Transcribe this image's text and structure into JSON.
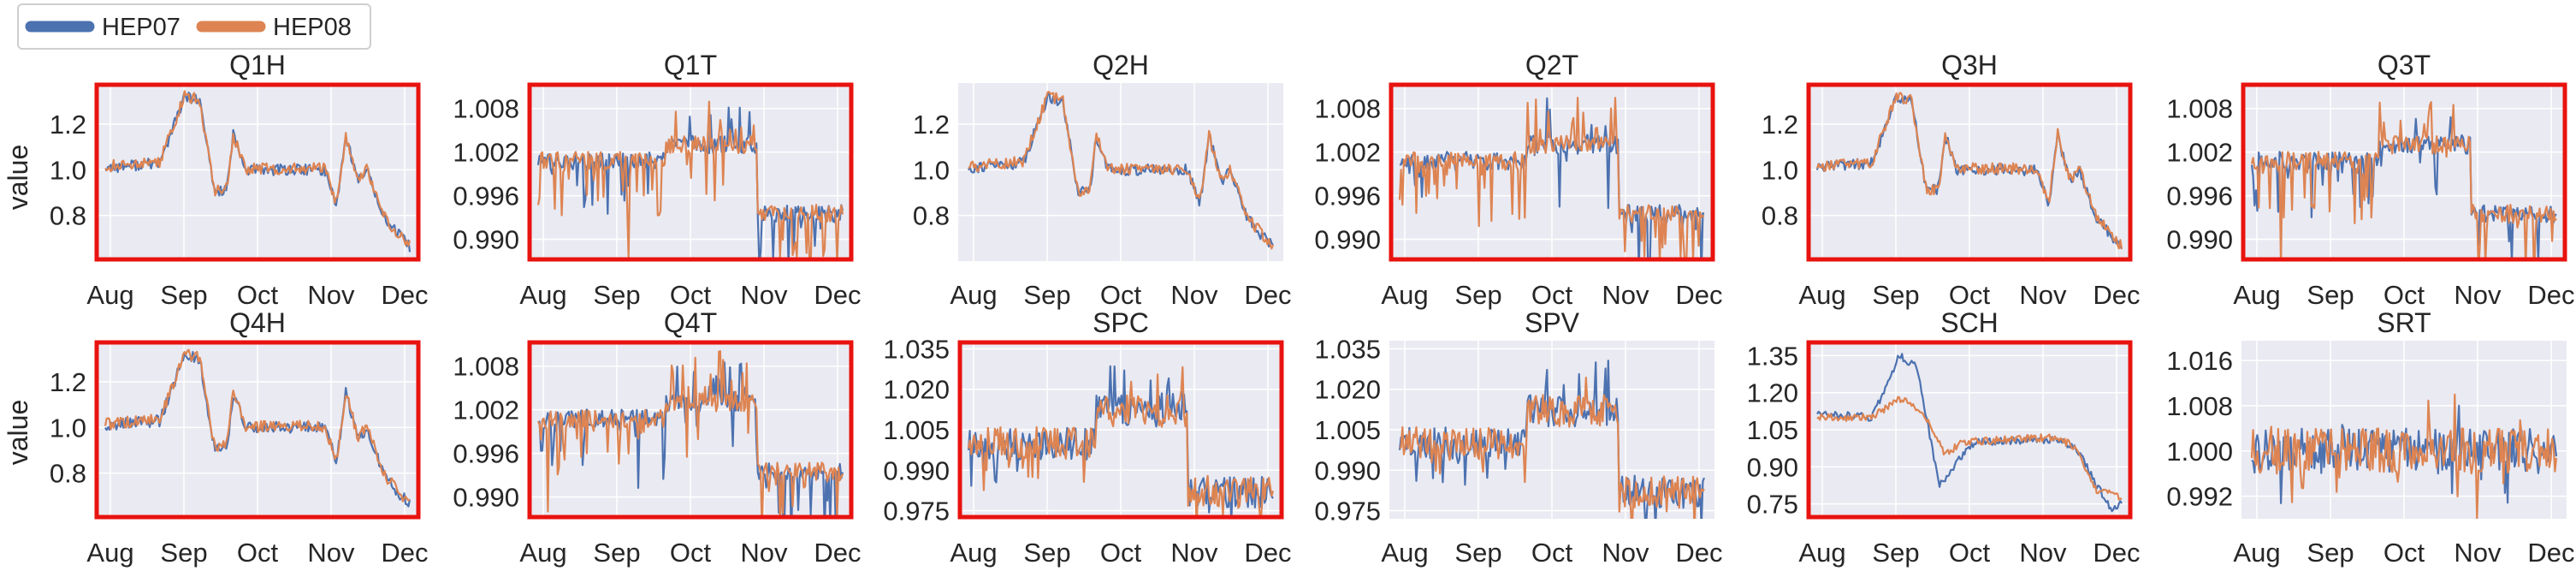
{
  "legend": {
    "entries": [
      {
        "label": "HEP07",
        "color": "#4c72b0"
      },
      {
        "label": "HEP08",
        "color": "#dd8452"
      }
    ]
  },
  "colors": {
    "plot_background": "#eaeaf2",
    "grid": "#ffffff",
    "highlight_frame": "#e8130f",
    "HEP07": "#4c72b0",
    "HEP08": "#dd8452"
  },
  "row_ylabels": [
    "value",
    "value"
  ],
  "chart_data": [
    {
      "type": "line",
      "title": "Q1H",
      "highlighted": true,
      "xticks": [
        "Aug",
        "Sep",
        "Oct",
        "Nov",
        "Dec"
      ],
      "ylim": [
        0.6,
        1.38
      ],
      "yticks": [
        "0.8",
        "1.0",
        "1.2"
      ],
      "profile": "H",
      "seed": 11,
      "series": [
        {
          "name": "HEP07"
        },
        {
          "name": "HEP08"
        }
      ]
    },
    {
      "type": "line",
      "title": "Q1T",
      "highlighted": true,
      "xticks": [
        "Aug",
        "Sep",
        "Oct",
        "Nov",
        "Dec"
      ],
      "ylim": [
        0.987,
        1.0115
      ],
      "yticks": [
        "0.990",
        "0.996",
        "1.002",
        "1.008"
      ],
      "profile": "T",
      "seed": 12,
      "series": [
        {
          "name": "HEP07"
        },
        {
          "name": "HEP08"
        }
      ]
    },
    {
      "type": "line",
      "title": "Q2H",
      "highlighted": false,
      "xticks": [
        "Aug",
        "Sep",
        "Oct",
        "Nov",
        "Dec"
      ],
      "ylim": [
        0.6,
        1.38
      ],
      "yticks": [
        "0.8",
        "1.0",
        "1.2"
      ],
      "profile": "H",
      "seed": 13,
      "series": [
        {
          "name": "HEP07"
        },
        {
          "name": "HEP08"
        }
      ]
    },
    {
      "type": "line",
      "title": "Q2T",
      "highlighted": true,
      "xticks": [
        "Aug",
        "Sep",
        "Oct",
        "Nov",
        "Dec"
      ],
      "ylim": [
        0.987,
        1.0115
      ],
      "yticks": [
        "0.990",
        "0.996",
        "1.002",
        "1.008"
      ],
      "profile": "T",
      "seed": 14,
      "series": [
        {
          "name": "HEP07"
        },
        {
          "name": "HEP08"
        }
      ]
    },
    {
      "type": "line",
      "title": "Q3H",
      "highlighted": true,
      "xticks": [
        "Aug",
        "Sep",
        "Oct",
        "Nov",
        "Dec"
      ],
      "ylim": [
        0.6,
        1.38
      ],
      "yticks": [
        "0.8",
        "1.0",
        "1.2"
      ],
      "profile": "H",
      "seed": 15,
      "series": [
        {
          "name": "HEP07"
        },
        {
          "name": "HEP08"
        }
      ]
    },
    {
      "type": "line",
      "title": "Q3T",
      "highlighted": true,
      "xticks": [
        "Aug",
        "Sep",
        "Oct",
        "Nov",
        "Dec"
      ],
      "ylim": [
        0.987,
        1.0115
      ],
      "yticks": [
        "0.990",
        "0.996",
        "1.002",
        "1.008"
      ],
      "profile": "T",
      "seed": 16,
      "series": [
        {
          "name": "HEP07"
        },
        {
          "name": "HEP08"
        }
      ]
    },
    {
      "type": "line",
      "title": "Q4H",
      "highlighted": true,
      "xticks": [
        "Aug",
        "Sep",
        "Oct",
        "Nov",
        "Dec"
      ],
      "ylim": [
        0.6,
        1.38
      ],
      "yticks": [
        "0.8",
        "1.0",
        "1.2"
      ],
      "profile": "H",
      "seed": 17,
      "series": [
        {
          "name": "HEP07"
        },
        {
          "name": "HEP08"
        }
      ]
    },
    {
      "type": "line",
      "title": "Q4T",
      "highlighted": true,
      "xticks": [
        "Aug",
        "Sep",
        "Oct",
        "Nov",
        "Dec"
      ],
      "ylim": [
        0.987,
        1.0115
      ],
      "yticks": [
        "0.990",
        "0.996",
        "1.002",
        "1.008"
      ],
      "profile": "T",
      "seed": 18,
      "series": [
        {
          "name": "HEP07"
        },
        {
          "name": "HEP08"
        }
      ]
    },
    {
      "type": "line",
      "title": "SPC",
      "highlighted": true,
      "xticks": [
        "Aug",
        "Sep",
        "Oct",
        "Nov",
        "Dec"
      ],
      "ylim": [
        0.972,
        1.038
      ],
      "yticks": [
        "0.975",
        "0.990",
        "1.005",
        "1.020",
        "1.035"
      ],
      "profile": "S",
      "seed": 19,
      "series": [
        {
          "name": "HEP07"
        },
        {
          "name": "HEP08"
        }
      ]
    },
    {
      "type": "line",
      "title": "SPV",
      "highlighted": false,
      "xticks": [
        "Aug",
        "Sep",
        "Oct",
        "Nov",
        "Dec"
      ],
      "ylim": [
        0.972,
        1.038
      ],
      "yticks": [
        "0.975",
        "0.990",
        "1.005",
        "1.020",
        "1.035"
      ],
      "profile": "S",
      "seed": 20,
      "series": [
        {
          "name": "HEP07"
        },
        {
          "name": "HEP08"
        }
      ]
    },
    {
      "type": "line",
      "title": "SCH",
      "highlighted": true,
      "xticks": [
        "Aug",
        "Sep",
        "Oct",
        "Nov",
        "Dec"
      ],
      "ylim": [
        0.69,
        1.41
      ],
      "yticks": [
        "0.75",
        "0.90",
        "1.05",
        "1.20",
        "1.35"
      ],
      "profile": "C",
      "seed": 21,
      "series": [
        {
          "name": "HEP07"
        },
        {
          "name": "HEP08"
        }
      ]
    },
    {
      "type": "line",
      "title": "SRT",
      "highlighted": false,
      "xticks": [
        "Aug",
        "Sep",
        "Oct",
        "Nov",
        "Dec"
      ],
      "ylim": [
        0.988,
        1.0195
      ],
      "yticks": [
        "0.992",
        "1.000",
        "1.008",
        "1.016"
      ],
      "profile": "R",
      "seed": 22,
      "series": [
        {
          "name": "HEP07"
        },
        {
          "name": "HEP08"
        }
      ]
    }
  ]
}
